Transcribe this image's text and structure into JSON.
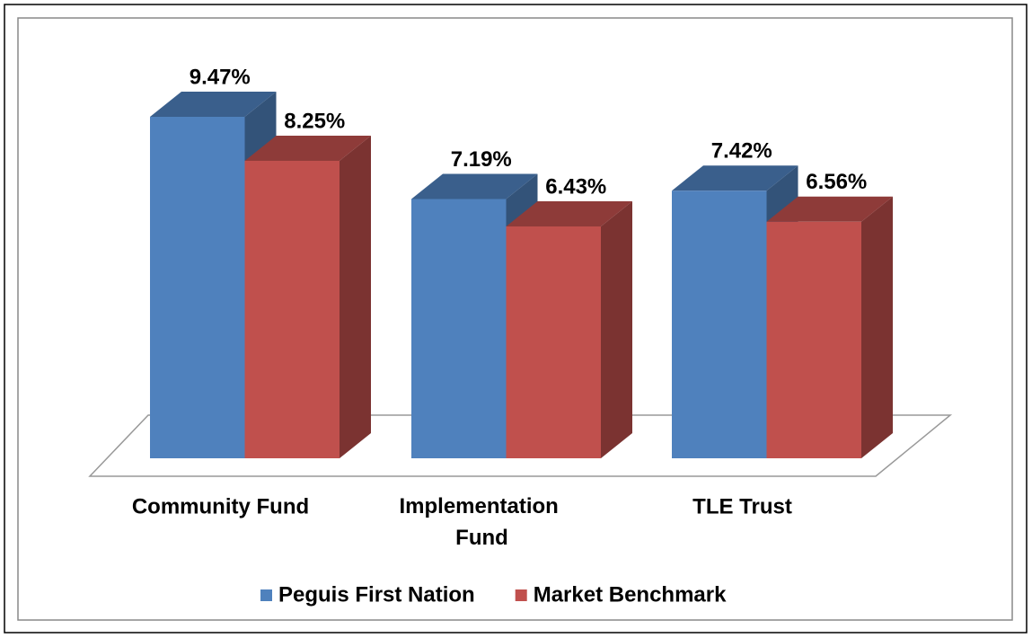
{
  "chart_data": {
    "type": "bar3d",
    "categories": [
      "Community Fund",
      "Implementation Fund",
      "TLE Trust"
    ],
    "series": [
      {
        "name": "Peguis First Nation",
        "color": "#4f81bd",
        "values": [
          9.47,
          7.19,
          7.42
        ],
        "value_labels": [
          "9.47%",
          "7.19%",
          "7.42%"
        ]
      },
      {
        "name": "Market Benchmark",
        "color": "#c0504d",
        "values": [
          8.25,
          6.43,
          6.56
        ],
        "value_labels": [
          "8.25%",
          "6.43%",
          "6.56%"
        ]
      }
    ],
    "legend": "bottom"
  }
}
